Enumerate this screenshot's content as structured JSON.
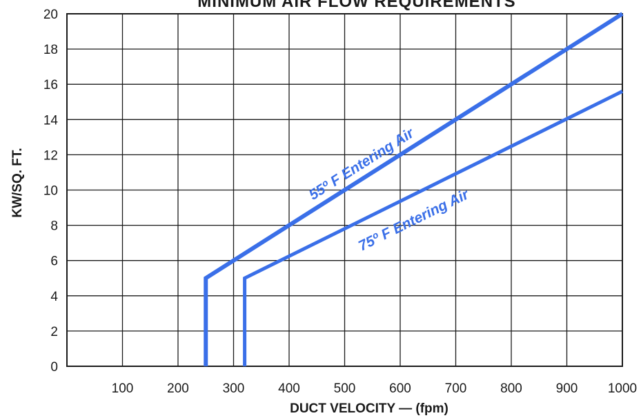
{
  "chart_data": {
    "type": "line",
    "title": "MINIMUM AIR FLOW REQUIREMENTS",
    "xlabel": "DUCT VELOCITY — (fpm)",
    "ylabel": "KW/SQ. FT.",
    "xlim": [
      0,
      1000
    ],
    "ylim": [
      0,
      20
    ],
    "x_ticks": [
      "100",
      "200",
      "300",
      "400",
      "500",
      "600",
      "700",
      "800",
      "900",
      "1000"
    ],
    "y_ticks": [
      "0",
      "2",
      "4",
      "6",
      "8",
      "10",
      "12",
      "14",
      "16",
      "18",
      "20"
    ],
    "grid": true,
    "series_color": "#3a6fe8",
    "series": [
      {
        "name": "55º F Entering Air",
        "x": [
          250,
          250,
          1000
        ],
        "y": [
          0,
          5,
          20
        ]
      },
      {
        "name": "75º F Entering Air",
        "x": [
          320,
          320,
          1000
        ],
        "y": [
          0,
          5,
          15.6
        ]
      }
    ]
  }
}
